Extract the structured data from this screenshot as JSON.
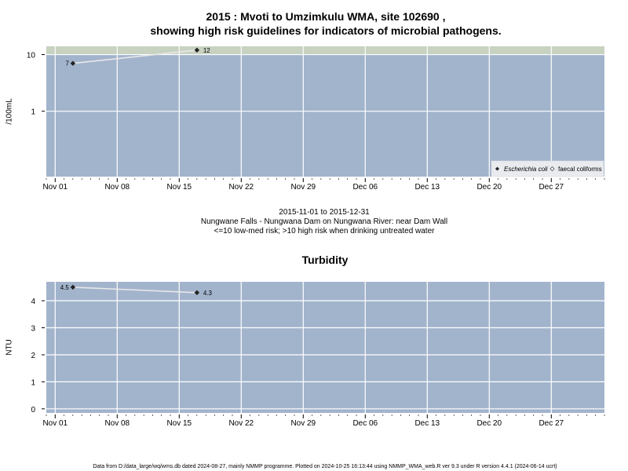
{
  "figure": {
    "title_line1": "2015 : Mvoti to Umzimkulu WMA, site 102690 ,",
    "title_line2": "showing high risk guidelines for indicators of microbial pathogens.",
    "subtitle_line1": "2015-11-01 to 2015-12-31",
    "subtitle_line2": "Nungwane Falls - Nungwana Dam on Nungwana River: near Dam Wall",
    "subtitle_line3": "<=10 low-med risk; >10 high risk when drinking untreated water",
    "footer": "Data from D:/data_large/wq/wms.db dated 2024-08-27, mainly NMMP programme. Plotted on 2024-10-25 16:13:44 using NMMP_WMA_web.R ver 9.3 under R version 4.4.1 (2024-06-14 ucrt)"
  },
  "colors": {
    "panel_bg": "#a2b4cc",
    "high_risk_band": "#c7d2c1",
    "grid": "#ffffff",
    "line": "#e8e8e8",
    "point": "#222222"
  },
  "chart_data": [
    {
      "type": "line",
      "title": "",
      "xlabel": "",
      "ylabel": "/100mL",
      "yscale": "log",
      "ylim": [
        0.07,
        14
      ],
      "y_ticks": [
        1,
        10
      ],
      "x_ticks": [
        "Nov 01",
        "Nov 08",
        "Nov 15",
        "Nov 22",
        "Nov 29",
        "Dec 06",
        "Dec 13",
        "Dec 20",
        "Dec 27"
      ],
      "x_tick_dates": [
        "2015-11-01",
        "2015-11-08",
        "2015-11-15",
        "2015-11-22",
        "2015-11-29",
        "2015-12-06",
        "2015-12-13",
        "2015-12-20",
        "2015-12-27"
      ],
      "xlim": [
        "2015-10-31",
        "2016-01-02"
      ],
      "grid": true,
      "threshold": {
        "value": 10,
        "description": "high risk above"
      },
      "legend": {
        "position": "bottom-right",
        "entries": [
          "Escherichia coli",
          "faecal coliforms"
        ]
      },
      "series": [
        {
          "name": "Escherichia coli",
          "x": [
            "2015-11-03",
            "2015-11-17"
          ],
          "y": [
            7,
            12
          ],
          "labels": [
            "7",
            "12"
          ]
        },
        {
          "name": "faecal coliforms",
          "x": [],
          "y": [],
          "labels": []
        }
      ]
    },
    {
      "type": "line",
      "title": "Turbidity",
      "xlabel": "",
      "ylabel": "NTU",
      "yscale": "linear",
      "ylim": [
        -0.15,
        4.7
      ],
      "y_ticks": [
        0,
        1,
        2,
        3,
        4
      ],
      "x_ticks": [
        "Nov 01",
        "Nov 08",
        "Nov 15",
        "Nov 22",
        "Nov 29",
        "Dec 06",
        "Dec 13",
        "Dec 20",
        "Dec 27"
      ],
      "x_tick_dates": [
        "2015-11-01",
        "2015-11-08",
        "2015-11-15",
        "2015-11-22",
        "2015-11-29",
        "2015-12-06",
        "2015-12-13",
        "2015-12-20",
        "2015-12-27"
      ],
      "xlim": [
        "2015-10-31",
        "2016-01-02"
      ],
      "grid": true,
      "series": [
        {
          "x": [
            "2015-11-03",
            "2015-11-17"
          ],
          "y": [
            4.5,
            4.3
          ],
          "labels": [
            "4.5",
            "4.3"
          ]
        }
      ]
    }
  ]
}
